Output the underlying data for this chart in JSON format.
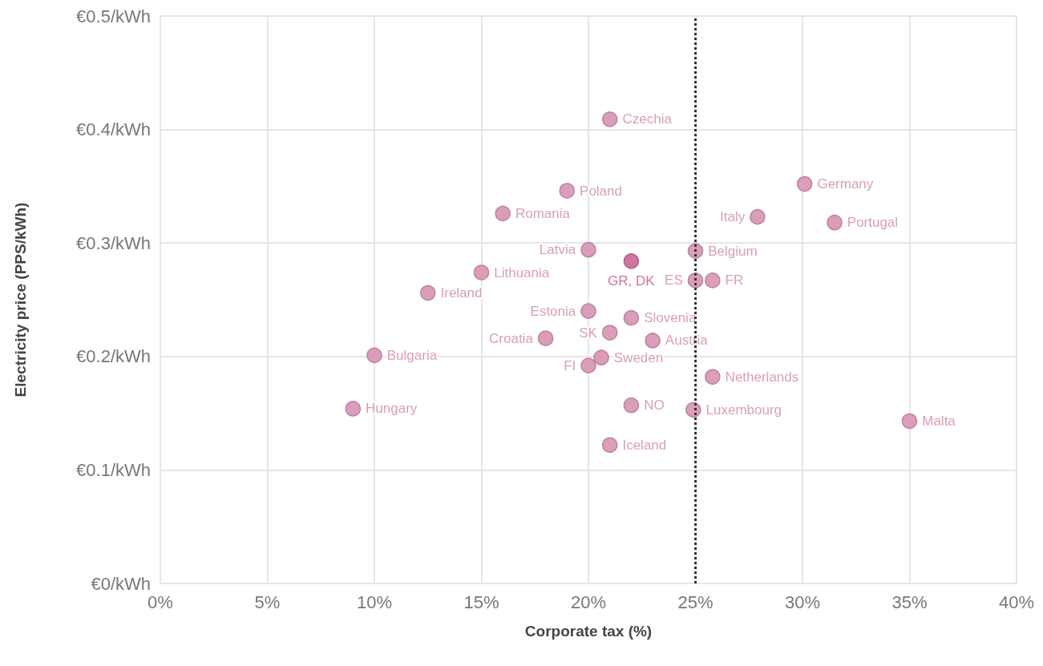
{
  "chart_data": {
    "type": "scatter",
    "xlabel": "Corporate tax (%)",
    "ylabel": "Electricity price (PPS/kWh)",
    "xlim": [
      0,
      40
    ],
    "xticks": [
      {
        "value": 0,
        "label": "0%"
      },
      {
        "value": 5,
        "label": "5%"
      },
      {
        "value": 10,
        "label": "10%"
      },
      {
        "value": 15,
        "label": "15%"
      },
      {
        "value": 20,
        "label": "20%"
      },
      {
        "value": 25,
        "label": "25%"
      },
      {
        "value": 30,
        "label": "30%"
      },
      {
        "value": 35,
        "label": "35%"
      },
      {
        "value": 40,
        "label": "40%"
      }
    ],
    "ylim": [
      0,
      0.5
    ],
    "yticks": [
      {
        "value": 0,
        "label": "€0/kWh"
      },
      {
        "value": 0.1,
        "label": "€0.1/kWh"
      },
      {
        "value": 0.2,
        "label": "€0.2/kWh"
      },
      {
        "value": 0.3,
        "label": "€0.3/kWh"
      },
      {
        "value": 0.4,
        "label": "€0.4/kWh"
      },
      {
        "value": 0.5,
        "label": "€0.5/kWh"
      }
    ],
    "grid": true,
    "legend": false,
    "marker": "circle",
    "ref_lines": [
      {
        "axis": "x",
        "value": 25,
        "color": "#333333",
        "line_style": "dotted"
      }
    ],
    "series": [
      {
        "name": "Czechia",
        "color": "#d898b6",
        "x": [
          21.0
        ],
        "values": [
          0.409
        ]
      },
      {
        "name": "Poland",
        "color": "#d898b6",
        "x": [
          19.0
        ],
        "values": [
          0.346
        ]
      },
      {
        "name": "Romania",
        "color": "#d898b6",
        "x": [
          16.0
        ],
        "values": [
          0.326
        ]
      },
      {
        "name": "Germany",
        "color": "#d898b6",
        "x": [
          30.1
        ],
        "values": [
          0.352
        ]
      },
      {
        "name": "Italy",
        "color": "#d898b6",
        "x": [
          27.9
        ],
        "values": [
          0.323
        ]
      },
      {
        "name": "Portugal",
        "color": "#d898b6",
        "x": [
          31.5
        ],
        "values": [
          0.318
        ]
      },
      {
        "name": "Latvia",
        "color": "#d898b6",
        "x": [
          20.0
        ],
        "values": [
          0.294
        ]
      },
      {
        "name": "GR, DK",
        "color": "#cf6b9a",
        "x": [
          22.0
        ],
        "values": [
          0.284
        ]
      },
      {
        "name": "Belgium",
        "color": "#d898b6",
        "x": [
          25.0
        ],
        "values": [
          0.293
        ]
      },
      {
        "name": "Lithuania",
        "color": "#d898b6",
        "x": [
          15.0
        ],
        "values": [
          0.274
        ]
      },
      {
        "name": "ES",
        "color": "#d898b6",
        "x": [
          25.0
        ],
        "values": [
          0.267
        ]
      },
      {
        "name": "FR",
        "color": "#d898b6",
        "x": [
          25.8
        ],
        "values": [
          0.267
        ]
      },
      {
        "name": "Ireland",
        "color": "#d898b6",
        "x": [
          12.5
        ],
        "values": [
          0.256
        ]
      },
      {
        "name": "Estonia",
        "color": "#d898b6",
        "x": [
          20.0
        ],
        "values": [
          0.24
        ]
      },
      {
        "name": "Slovenia",
        "color": "#d898b6",
        "x": [
          22.0
        ],
        "values": [
          0.234
        ]
      },
      {
        "name": "SK",
        "color": "#d898b6",
        "x": [
          21.0
        ],
        "values": [
          0.221
        ]
      },
      {
        "name": "Croatia",
        "color": "#d898b6",
        "x": [
          18.0
        ],
        "values": [
          0.216
        ]
      },
      {
        "name": "Austria",
        "color": "#d898b6",
        "x": [
          23.0
        ],
        "values": [
          0.214
        ]
      },
      {
        "name": "Bulgaria",
        "color": "#d898b6",
        "x": [
          10.0
        ],
        "values": [
          0.201
        ]
      },
      {
        "name": "Sweden",
        "color": "#d898b6",
        "x": [
          20.6
        ],
        "values": [
          0.199
        ]
      },
      {
        "name": "FI",
        "color": "#d898b6",
        "x": [
          20.0
        ],
        "values": [
          0.192
        ]
      },
      {
        "name": "Netherlands",
        "color": "#d898b6",
        "x": [
          25.8
        ],
        "values": [
          0.182
        ]
      },
      {
        "name": "Hungary",
        "color": "#d898b6",
        "x": [
          9.0
        ],
        "values": [
          0.154
        ]
      },
      {
        "name": "NO",
        "color": "#d898b6",
        "x": [
          22.0
        ],
        "values": [
          0.157
        ]
      },
      {
        "name": "Luxembourg",
        "color": "#d898b6",
        "x": [
          24.9
        ],
        "values": [
          0.153
        ]
      },
      {
        "name": "Malta",
        "color": "#d898b6",
        "x": [
          35.0
        ],
        "values": [
          0.143
        ]
      },
      {
        "name": "Iceland",
        "color": "#d898b6",
        "x": [
          21.0
        ],
        "values": [
          0.122
        ]
      }
    ]
  }
}
